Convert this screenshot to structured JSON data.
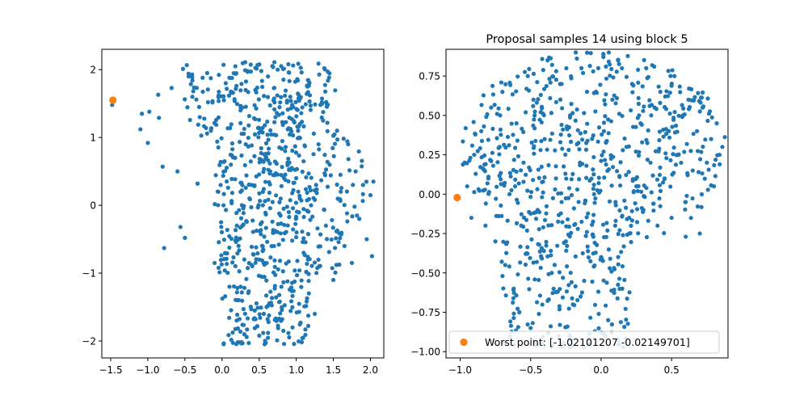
{
  "chart_data": [
    {
      "type": "scatter",
      "title": "",
      "xlabel": "",
      "ylabel": "",
      "xlim": [
        -1.62,
        2.18
      ],
      "ylim": [
        -2.25,
        2.3
      ],
      "xticks": [
        -1.5,
        -1.0,
        -0.5,
        0.0,
        0.5,
        1.0,
        1.5,
        2.0
      ],
      "xtick_labels": [
        "−1.5",
        "−1.0",
        "−0.5",
        "0.0",
        "0.5",
        "1.0",
        "1.5",
        "2.0"
      ],
      "yticks": [
        -2,
        -1,
        0,
        1,
        2
      ],
      "ytick_labels": [
        "−2",
        "−1",
        "0",
        "1",
        "2"
      ],
      "grid": false,
      "series": [
        {
          "color": "#1f77b4",
          "marker_size": "small",
          "approx_count": 800,
          "region": "fan-shaped cloud, dense band x 0.2–1.0, spreading to x≈2.05 on the right and sparse tail toward x≈-1.5 at y≈1.5",
          "points": [
            [
              -1.48,
              1.48
            ],
            [
              -1.1,
              1.12
            ],
            [
              -1.08,
              1.35
            ],
            [
              -1.0,
              0.92
            ],
            [
              -0.98,
              1.38
            ],
            [
              -0.86,
              1.63
            ],
            [
              -0.85,
              1.29
            ],
            [
              -0.8,
              0.57
            ],
            [
              -0.78,
              -0.63
            ],
            [
              -0.68,
              1.73
            ],
            [
              -0.6,
              0.5
            ],
            [
              -0.56,
              -0.32
            ],
            [
              -0.5,
              -0.48
            ],
            [
              -0.45,
              1.9
            ],
            [
              -0.4,
              1.6
            ],
            [
              -0.33,
              0.32
            ],
            [
              -0.3,
              1.3
            ],
            [
              -0.2,
              1.95
            ],
            [
              -0.15,
              1.1
            ],
            [
              -0.1,
              -0.85
            ],
            [
              -0.05,
              0.2
            ],
            [
              0.02,
              0.0
            ],
            [
              0.05,
              1.8
            ],
            [
              0.1,
              -1.2
            ],
            [
              0.12,
              0.6
            ],
            [
              0.18,
              2.05
            ],
            [
              0.2,
              -0.3
            ],
            [
              0.25,
              1.4
            ],
            [
              0.3,
              -1.9
            ],
            [
              0.32,
              0.9
            ],
            [
              0.36,
              -2.03
            ],
            [
              0.4,
              0.3
            ],
            [
              0.45,
              1.7
            ],
            [
              0.5,
              -0.8
            ],
            [
              0.52,
              1.1
            ],
            [
              0.55,
              0.0
            ],
            [
              0.6,
              -1.5
            ],
            [
              0.62,
              1.9
            ],
            [
              0.65,
              0.5
            ],
            [
              0.7,
              -0.4
            ],
            [
              0.72,
              1.3
            ],
            [
              0.75,
              2.0
            ],
            [
              0.8,
              -1.2
            ],
            [
              0.85,
              0.8
            ],
            [
              0.9,
              -0.1
            ],
            [
              0.92,
              1.6
            ],
            [
              0.95,
              -1.8
            ],
            [
              1.0,
              0.4
            ],
            [
              1.05,
              1.2
            ],
            [
              1.1,
              -0.7
            ],
            [
              1.15,
              1.75
            ],
            [
              1.2,
              0.0
            ],
            [
              1.25,
              -1.6
            ],
            [
              1.3,
              0.9
            ],
            [
              1.35,
              1.5
            ],
            [
              1.4,
              -0.3
            ],
            [
              1.45,
              0.6
            ],
            [
              1.5,
              -1.1
            ],
            [
              1.55,
              1.1
            ],
            [
              1.6,
              0.2
            ],
            [
              1.65,
              -0.6
            ],
            [
              1.7,
              0.9
            ],
            [
              1.75,
              -0.85
            ],
            [
              1.8,
              0.5
            ],
            [
              1.85,
              -0.2
            ],
            [
              1.9,
              0.3
            ],
            [
              1.95,
              -0.5
            ],
            [
              2.0,
              0.15
            ],
            [
              2.04,
              0.35
            ],
            [
              2.02,
              -0.75
            ]
          ]
        },
        {
          "color": "#ff7f0e",
          "marker_size": "large",
          "points": [
            [
              -1.47,
              1.55
            ]
          ]
        }
      ]
    },
    {
      "type": "scatter",
      "title": "Proposal samples 14 using block 5",
      "xlabel": "",
      "ylabel": "",
      "xlim": [
        -1.1,
        0.9
      ],
      "ylim": [
        -1.04,
        0.92
      ],
      "xticks": [
        -1.0,
        -0.5,
        0.0,
        0.5
      ],
      "xtick_labels": [
        "−1.0",
        "−0.5",
        "0.0",
        "0.5"
      ],
      "yticks": [
        -1.0,
        -0.75,
        -0.5,
        -0.25,
        0.0,
        0.25,
        0.5,
        0.75
      ],
      "ytick_labels": [
        "−1.00",
        "−0.75",
        "−0.50",
        "−0.25",
        "0.00",
        "0.25",
        "0.50",
        "0.75"
      ],
      "grid": false,
      "legend": {
        "placement": "lower-center",
        "entries": [
          "Worst point: [-1.02101207 -0.02149701]"
        ]
      },
      "series": [
        {
          "color": "#1f77b4",
          "marker_size": "small",
          "approx_count": 800,
          "region": "head-shaped cloud: wide round top spanning x -0.95 to 0.87 for y -0.3 to 0.9, narrowing to x -0.7 to 0.2 for y below -0.3 down to -1.0",
          "points": [
            [
              -0.95,
              0.05
            ],
            [
              -0.92,
              -0.15
            ],
            [
              -0.9,
              0.25
            ],
            [
              -0.85,
              0.4
            ],
            [
              -0.82,
              -0.2
            ],
            [
              -0.8,
              0.1
            ],
            [
              -0.78,
              0.55
            ],
            [
              -0.75,
              -0.3
            ],
            [
              -0.72,
              0.3
            ],
            [
              -0.7,
              0.65
            ],
            [
              -0.68,
              -0.45
            ],
            [
              -0.65,
              0.0
            ],
            [
              -0.62,
              -0.6
            ],
            [
              -0.6,
              0.45
            ],
            [
              -0.58,
              -0.75
            ],
            [
              -0.55,
              0.2
            ],
            [
              -0.52,
              0.75
            ],
            [
              -0.5,
              -0.85
            ],
            [
              -0.48,
              0.6
            ],
            [
              -0.45,
              -0.1
            ],
            [
              -0.42,
              -0.95
            ],
            [
              -0.4,
              0.35
            ],
            [
              -0.38,
              0.85
            ],
            [
              -0.35,
              -0.5
            ],
            [
              -0.32,
              0.1
            ],
            [
              -0.3,
              -0.9
            ],
            [
              -0.28,
              0.7
            ],
            [
              -0.25,
              -0.3
            ],
            [
              -0.22,
              0.5
            ],
            [
              -0.2,
              -0.7
            ],
            [
              -0.18,
              0.9
            ],
            [
              -0.15,
              0.2
            ],
            [
              -0.12,
              -0.55
            ],
            [
              -0.1,
              0.65
            ],
            [
              -0.08,
              -0.95
            ],
            [
              -0.05,
              0.0
            ],
            [
              -0.02,
              0.8
            ],
            [
              0.0,
              -0.4
            ],
            [
              0.02,
              0.4
            ],
            [
              0.05,
              -0.8
            ],
            [
              0.08,
              0.6
            ],
            [
              0.1,
              -0.2
            ],
            [
              0.12,
              0.85
            ],
            [
              0.15,
              -0.6
            ],
            [
              0.18,
              0.3
            ],
            [
              0.2,
              -0.25
            ],
            [
              0.22,
              0.7
            ],
            [
              0.25,
              0.05
            ],
            [
              0.28,
              0.45
            ],
            [
              0.3,
              -0.1
            ],
            [
              0.32,
              0.8
            ],
            [
              0.35,
              0.2
            ],
            [
              0.38,
              0.55
            ],
            [
              0.4,
              -0.2
            ],
            [
              0.42,
              0.65
            ],
            [
              0.45,
              0.1
            ],
            [
              0.48,
              0.4
            ],
            [
              0.5,
              -0.15
            ],
            [
              0.52,
              0.75
            ],
            [
              0.55,
              0.25
            ],
            [
              0.58,
              0.5
            ],
            [
              0.6,
              -0.05
            ],
            [
              0.62,
              0.6
            ],
            [
              0.65,
              0.15
            ],
            [
              0.68,
              0.4
            ],
            [
              0.7,
              -0.25
            ],
            [
              0.72,
              0.55
            ],
            [
              0.75,
              0.2
            ],
            [
              0.78,
              0.35
            ],
            [
              0.8,
              0.05
            ],
            [
              0.82,
              0.45
            ],
            [
              0.84,
              0.25
            ],
            [
              0.86,
              0.3
            ],
            [
              0.6,
              -0.27
            ],
            [
              -0.28,
              -0.05
            ]
          ]
        },
        {
          "color": "#ff7f0e",
          "marker_size": "large",
          "name": "Worst point: [-1.02101207 -0.02149701]",
          "points": [
            [
              -1.021,
              -0.0215
            ]
          ]
        }
      ]
    }
  ]
}
